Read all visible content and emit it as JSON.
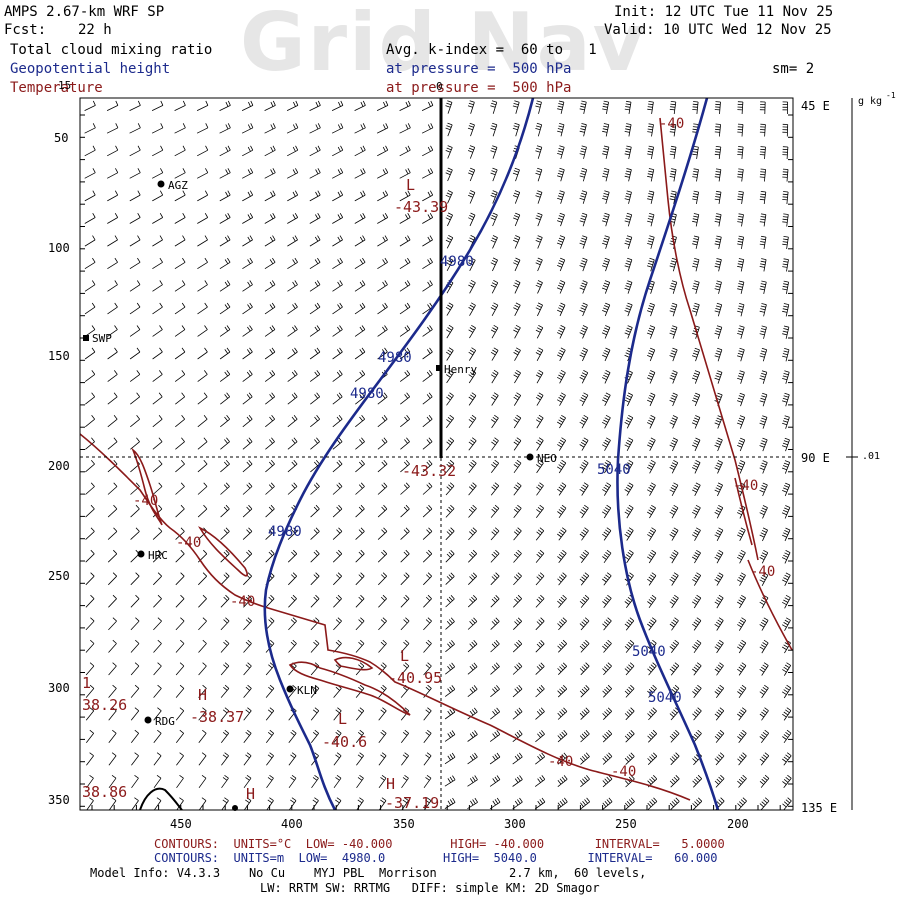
{
  "header": {
    "model": "AMPS 2.67-km WRF SP",
    "fcst_label": "Fcst:",
    "fcst_value": "22 h",
    "init": "Init: 12 UTC Tue 11 Nov 25",
    "valid": "Valid: 10 UTC Wed 12 Nov 25",
    "field1": "Total cloud mixing ratio",
    "field1_avg": "Avg. k-index =  60 to   1",
    "field2": "Geopotential height",
    "field2_level": "at pressure =  500 hPa",
    "field3": "Temperature",
    "field3_level": "at pressure =  500 hPa",
    "smoothing": "sm= 2",
    "watermark": "Grid Nav"
  },
  "axes": {
    "y_ticks": [
      "50",
      "100",
      "150",
      "200",
      "250",
      "300",
      "350"
    ],
    "x_ticks": [
      "450",
      "400",
      "350",
      "300",
      "250",
      "200"
    ],
    "right_labels": [
      "45 E",
      "90 E",
      "135 E"
    ],
    "top_left_num": "15",
    "colorbar_unit": "g kg",
    "colorbar_unit_exp": "-1",
    "colorbar_value": ".01",
    "cross_value": "0"
  },
  "stations": [
    {
      "name": "AGZ"
    },
    {
      "name": "SWP"
    },
    {
      "name": "Henry"
    },
    {
      "name": "NEO"
    },
    {
      "name": "HRC"
    },
    {
      "name": "KLN"
    },
    {
      "name": "RDG"
    }
  ],
  "height_labels": [
    "4980",
    "4980",
    "4980",
    "4980",
    "5040",
    "5040",
    "5040"
  ],
  "temp_labels": [
    "-40",
    "-40",
    "-40",
    "-40",
    "-40",
    "-40",
    "-40",
    "-40"
  ],
  "extrema": [
    {
      "type": "L",
      "value": "-43.39"
    },
    {
      "type": "",
      "value": "-43.32"
    },
    {
      "type": "L",
      "value": "-40.95"
    },
    {
      "type": "L",
      "value": "-40.6"
    },
    {
      "type": "H",
      "value": "-38.37"
    },
    {
      "type": "",
      "value": "38.26"
    },
    {
      "type": "",
      "value": "38.86"
    },
    {
      "type": "H",
      "value": "-37.19"
    },
    {
      "type": "H",
      "value": ""
    },
    {
      "type": "",
      "value": "1"
    }
  ],
  "footer": {
    "red_line": "CONTOURS:  UNITS=°C  LOW= -40.000        HIGH= -40.000       INTERVAL=   5.0000",
    "blue_line": "CONTOURS:  UNITS=m  LOW=  4980.0        HIGH=  5040.0       INTERVAL=   60.000",
    "model_info": "Model Info: V4.3.3    No Cu    MYJ PBL  Morrison          2.7 km,  60 levels,",
    "physics": "LW: RRTM SW: RRTMG   DIFF: simple KM: 2D Smagor"
  },
  "colors": {
    "height": "#1c2a8c",
    "temp": "#8b1a1a",
    "barb": "#000000"
  }
}
